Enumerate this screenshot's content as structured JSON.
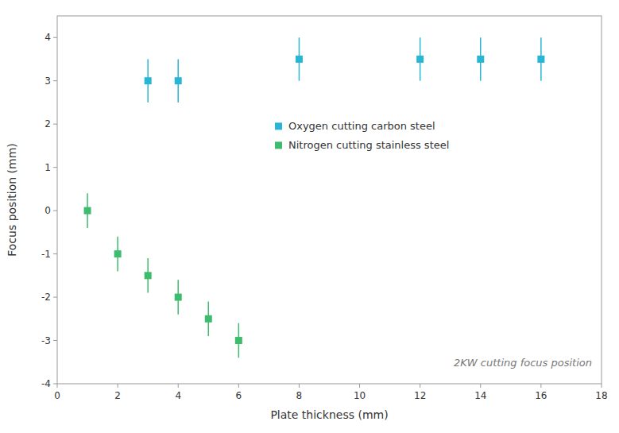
{
  "chart_data": {
    "type": "scatter",
    "xlabel": "Plate thickness (mm)",
    "ylabel": "Focus position (mm)",
    "annotation": "2KW cutting focus position",
    "series": [
      {
        "name": "Oxygen cutting carbon steel",
        "color": "#29b6d4",
        "marker": "square",
        "x": [
          3,
          4,
          8,
          12,
          14,
          16
        ],
        "values": [
          3.0,
          3.0,
          3.5,
          3.5,
          3.5,
          3.5
        ],
        "errors": [
          0.5,
          0.5,
          0.5,
          0.5,
          0.5,
          0.5
        ]
      },
      {
        "name": "Nitrogen cutting stainless steel",
        "color": "#3dbc6e",
        "marker": "square",
        "x": [
          1,
          2,
          3,
          4,
          5,
          6
        ],
        "values": [
          0.0,
          -1.0,
          -1.5,
          -2.0,
          -2.5,
          -3.0
        ],
        "errors": [
          0.4,
          0.4,
          0.4,
          0.4,
          0.4,
          0.4
        ]
      }
    ],
    "xlim": [
      0,
      18
    ],
    "ylim": [
      -4,
      4.5
    ],
    "xticks": [
      0,
      2,
      4,
      6,
      8,
      10,
      12,
      14,
      16,
      18
    ],
    "yticks": [
      -4,
      -3,
      -2,
      -1,
      0,
      1,
      2,
      3,
      4
    ],
    "grid": false,
    "legend": "center"
  }
}
